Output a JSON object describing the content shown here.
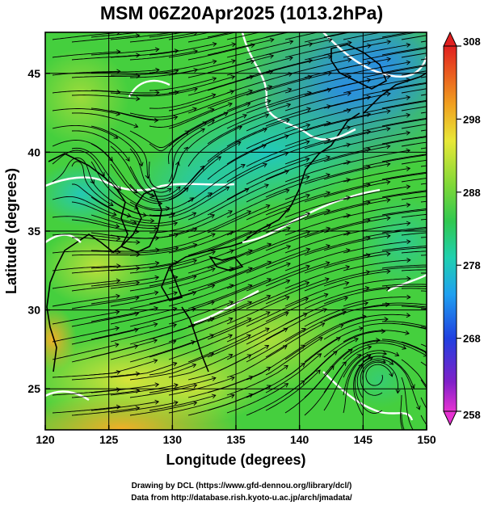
{
  "title": "MSM 06Z20Apr2025 (1013.2hPa)",
  "x_axis": {
    "label": "Longitude (degrees)",
    "range": [
      120,
      150
    ],
    "ticks": [
      {
        "value": 120,
        "label": "120"
      },
      {
        "value": 125,
        "label": "125"
      },
      {
        "value": 130,
        "label": "130"
      },
      {
        "value": 135,
        "label": "135"
      },
      {
        "value": 140,
        "label": "140"
      },
      {
        "value": 145,
        "label": "145"
      },
      {
        "value": 150,
        "label": "150"
      }
    ]
  },
  "y_axis": {
    "label": "Latitude  (degrees)",
    "range": [
      22.4,
      47.6
    ],
    "ticks": [
      {
        "value": 25,
        "label": "25"
      },
      {
        "value": 30,
        "label": "30"
      },
      {
        "value": 35,
        "label": "35"
      },
      {
        "value": 40,
        "label": "40"
      },
      {
        "value": 45,
        "label": "45"
      }
    ]
  },
  "colorbar": {
    "range": [
      258,
      308
    ],
    "ticks": [
      {
        "value": 258,
        "label": "258"
      },
      {
        "value": 268,
        "label": "268"
      },
      {
        "value": 278,
        "label": "278"
      },
      {
        "value": 288,
        "label": "288"
      },
      {
        "value": 298,
        "label": "298"
      },
      {
        "value": 308,
        "label": "308"
      }
    ]
  },
  "credits": {
    "line1": "Drawing by DCL (https://www.gfd-dennou.org/library/dcl/)",
    "line2": "Data from http://database.rish.kyoto-u.ac.jp/arch/jmadata/"
  },
  "colors": {
    "field_green": "#3dd23c",
    "field_yellow": "#cfe63a",
    "field_cyan": "#22c8b0",
    "field_blue": "#2aa8e8",
    "field_orange": "#f0a020",
    "streamline": "#000000",
    "contour": "#ffffff"
  }
}
